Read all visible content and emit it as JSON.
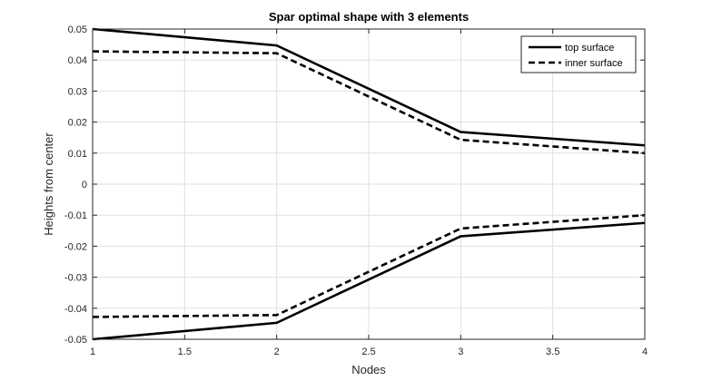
{
  "chart_data": {
    "type": "line",
    "title": "Spar optimal shape with 3 elements",
    "xlabel": "Nodes",
    "ylabel": "Heights from center",
    "xlim": [
      1,
      4
    ],
    "ylim": [
      -0.05,
      0.05
    ],
    "xticks": [
      1,
      1.5,
      2,
      2.5,
      3,
      3.5,
      4
    ],
    "xtick_labels": [
      "1",
      "1.5",
      "2",
      "2.5",
      "3",
      "3.5",
      "4"
    ],
    "yticks": [
      0.05,
      0.04,
      0.03,
      0.02,
      0.01,
      0,
      -0.01,
      -0.02,
      -0.03,
      -0.04,
      -0.05
    ],
    "ytick_labels": [
      "0.05",
      "0.04",
      "0.03",
      "0.02",
      "0.01",
      "0",
      "-0.01",
      "-0.02",
      "-0.03",
      "-0.04",
      "-0.05"
    ],
    "grid": true,
    "legend_position": "top-right",
    "x": [
      1,
      2,
      3,
      4
    ],
    "series": [
      {
        "name": "top surface",
        "style": "solid",
        "color": "#000000",
        "values": [
          0.05,
          0.0447,
          0.0168,
          0.0125
        ]
      },
      {
        "name": "inner surface",
        "style": "dashed",
        "color": "#000000",
        "values": [
          0.0428,
          0.0422,
          0.0143,
          0.01
        ]
      },
      {
        "name": "",
        "style": "solid",
        "color": "#000000",
        "values": [
          -0.05,
          -0.0447,
          -0.0168,
          -0.0125
        ]
      },
      {
        "name": "",
        "style": "dashed",
        "color": "#000000",
        "values": [
          -0.0428,
          -0.0422,
          -0.0143,
          -0.01
        ]
      }
    ]
  }
}
